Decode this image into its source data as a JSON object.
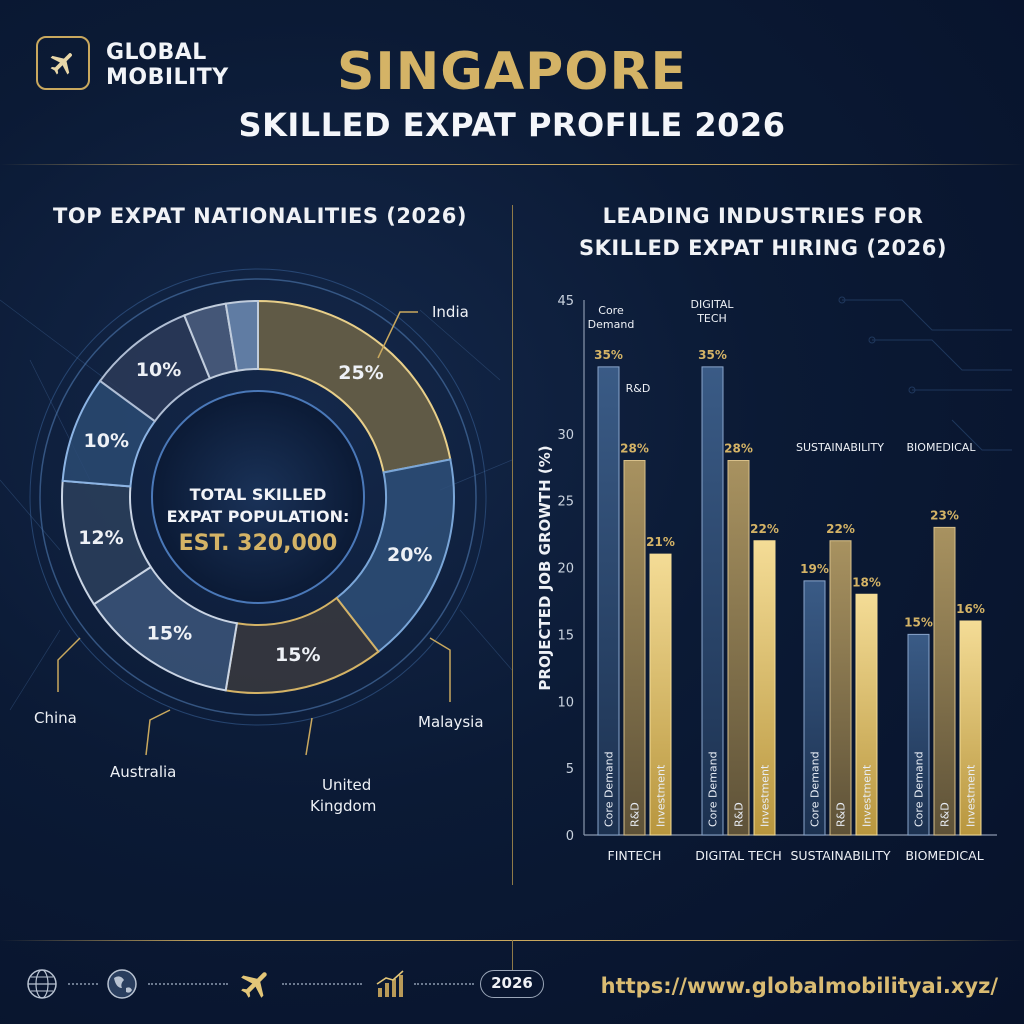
{
  "brand": {
    "line1": "GLOBAL",
    "line2": "MOBILITY",
    "icon": "airplane-icon"
  },
  "header": {
    "title": "SINGAPORE",
    "subtitle": "SKILLED EXPAT PROFILE 2026"
  },
  "colors": {
    "gold": "#d4b366",
    "navy": "#0b1a35",
    "blue_bar": "#2a4468",
    "tan_bar": "#8a7a55",
    "light_gold_bar": "#e6c877"
  },
  "left_panel": {
    "title": "TOP EXPAT NATIONALITIES (2026)",
    "center_label_1": "TOTAL SKILLED",
    "center_label_2": "EXPAT POPULATION:",
    "center_value": "EST. 320,000"
  },
  "right_panel": {
    "title_1": "LEADING INDUSTRIES FOR",
    "title_2": "SKILLED EXPAT HIRING (2026)"
  },
  "chart_data": [
    {
      "type": "pie",
      "title": "TOP EXPAT NATIONALITIES (2026)",
      "slices": [
        {
          "label": "India",
          "value": 25
        },
        {
          "label": "Malaysia",
          "value": 20
        },
        {
          "label": "United Kingdom",
          "value": 15
        },
        {
          "label": "",
          "value": 15
        },
        {
          "label": "Australia",
          "value": 12
        },
        {
          "label": "China",
          "value": 10
        },
        {
          "label": "",
          "value": 10
        },
        {
          "label": "",
          "value": 4
        },
        {
          "label": "",
          "value": 3
        }
      ],
      "slice_labels": [
        "25%",
        "20%",
        "15%",
        "15%",
        "12%",
        "10%",
        "10%",
        "",
        ""
      ],
      "callouts": [
        "India",
        "Malaysia",
        "United Kingdom",
        "Australia",
        "China"
      ]
    },
    {
      "type": "bar",
      "title": "LEADING INDUSTRIES FOR SKILLED EXPAT HIRING (2026)",
      "categories": [
        "FINTECH",
        "DIGITAL TECH",
        "SUSTAINABILITY",
        "BIOMEDICAL"
      ],
      "series": [
        {
          "name": "Core Demand",
          "values": [
            35,
            35,
            19,
            15
          ]
        },
        {
          "name": "R&D",
          "values": [
            28,
            28,
            22,
            23
          ]
        },
        {
          "name": "Investment",
          "values": [
            21,
            22,
            18,
            16
          ]
        }
      ],
      "value_labels": [
        [
          "35%",
          "28%",
          "21%"
        ],
        [
          "35%",
          "28%",
          "22%"
        ],
        [
          "19%",
          "22%",
          "18%"
        ],
        [
          "15%",
          "23%",
          "16%"
        ]
      ],
      "group_annotations": [
        {
          "group": 0,
          "text1": "Core",
          "text2": "Demand"
        },
        {
          "group": 0,
          "text1": "R&D",
          "text2": ""
        },
        {
          "group": 1,
          "text1": "DIGITAL",
          "text2": "TECH"
        },
        {
          "group": 2,
          "text1": "SUSTAINABILITY",
          "text2": ""
        },
        {
          "group": 3,
          "text1": "BIOMEDICAL",
          "text2": ""
        }
      ],
      "ylabel": "PROJECTED JOB GROWTH (%)",
      "yticks": [
        "0",
        "5",
        "10",
        "15",
        "20",
        "25",
        "30",
        "45"
      ],
      "ylim": [
        0,
        40
      ]
    }
  ],
  "footer": {
    "year": "2026",
    "url": "https://www.globalmobilityai.xyz/",
    "icons": [
      "globe-icon",
      "earth-icon",
      "airplane-icon",
      "chart-icon"
    ]
  }
}
